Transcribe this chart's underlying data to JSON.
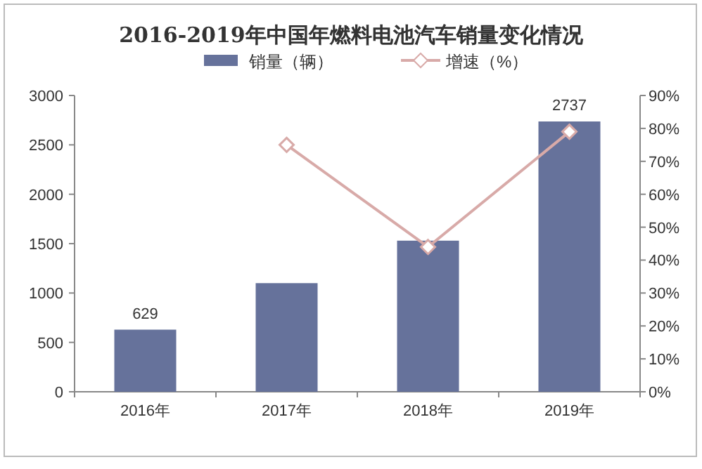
{
  "chart_data": {
    "type": "bar",
    "title": "2016-2019年中国年燃料电池汽车销量变化情况",
    "categories": [
      "2016年",
      "2017年",
      "2018年",
      "2019年"
    ],
    "series": [
      {
        "name": "销量（辆）",
        "color": "#66729b",
        "values": [
          629,
          1100,
          1530,
          2737
        ],
        "value_labels": [
          "629",
          null,
          null,
          "2737"
        ]
      },
      {
        "name": "增速（%）",
        "type": "line",
        "axis": "y2",
        "color": "#d8aaa8",
        "marker": "diamond",
        "values": [
          null,
          75,
          44,
          79
        ]
      }
    ],
    "ylim": [
      0,
      3000
    ],
    "yticks": [
      0,
      500,
      1000,
      1500,
      2000,
      2500,
      3000
    ],
    "y2lim": [
      0,
      90
    ],
    "y2ticks": [
      {
        "value": 0,
        "label": "0%"
      },
      {
        "value": 10,
        "label": "10%"
      },
      {
        "value": 20,
        "label": "20%"
      },
      {
        "value": 30,
        "label": "30%"
      },
      {
        "value": 40,
        "label": "40%"
      },
      {
        "value": 50,
        "label": "50%"
      },
      {
        "value": 60,
        "label": "60%"
      },
      {
        "value": 70,
        "label": "70%"
      },
      {
        "value": 80,
        "label": "80%"
      },
      {
        "value": 90,
        "label": "90%"
      }
    ],
    "grid": false,
    "legend": "top"
  }
}
